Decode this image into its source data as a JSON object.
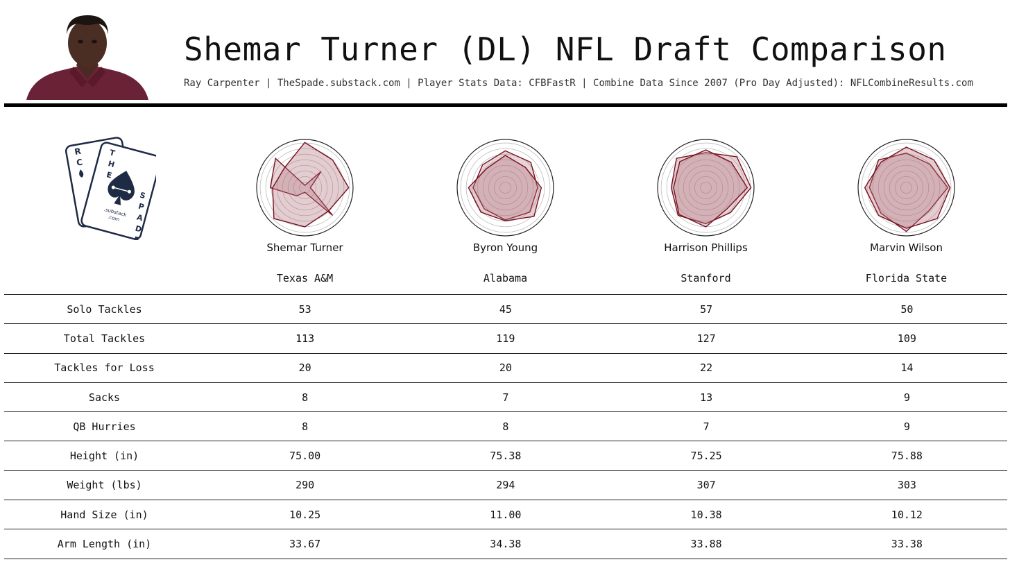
{
  "header": {
    "title": "Shemar Turner (DL) NFL Draft Comparison",
    "subtitle": "Ray Carpenter | TheSpade.substack.com | Player Stats Data: CFBFastR | Combine Data Since 2007 (Pro Day Adjusted): NFLCombineResults.com"
  },
  "logo": {
    "back_card": "RC",
    "front_card": [
      "T",
      "H",
      "E",
      "S",
      "P",
      "A",
      "D",
      "E"
    ],
    "site": [
      ".substack",
      ".com"
    ]
  },
  "colors": {
    "radar_stroke": "#7a1020",
    "radar_fill": "#b0707a",
    "rule": "#000000"
  },
  "players": [
    {
      "name": "Shemar Turner",
      "school": "Texas A&M"
    },
    {
      "name": "Byron Young",
      "school": "Alabama"
    },
    {
      "name": "Harrison Phillips",
      "school": "Stanford"
    },
    {
      "name": "Marvin Wilson",
      "school": "Florida State"
    }
  ],
  "stats": [
    {
      "label": "Solo Tackles",
      "values": [
        "53",
        "45",
        "57",
        "50"
      ]
    },
    {
      "label": "Total Tackles",
      "values": [
        "113",
        "119",
        "127",
        "109"
      ]
    },
    {
      "label": "Tackles for Loss",
      "values": [
        "20",
        "20",
        "22",
        "14"
      ]
    },
    {
      "label": "Sacks",
      "values": [
        "8",
        "7",
        "13",
        "9"
      ]
    },
    {
      "label": "QB Hurries",
      "values": [
        "8",
        "8",
        "7",
        "9"
      ]
    },
    {
      "label": "Height (in)",
      "values": [
        "75.00",
        "75.38",
        "75.25",
        "75.88"
      ]
    },
    {
      "label": "Weight (lbs)",
      "values": [
        "290",
        "294",
        "307",
        "303"
      ]
    },
    {
      "label": "Hand Size (in)",
      "values": [
        "10.25",
        "11.00",
        "10.38",
        "10.12"
      ]
    },
    {
      "label": "Arm Length (in)",
      "values": [
        "33.67",
        "34.38",
        "33.88",
        "33.38"
      ]
    }
  ]
}
